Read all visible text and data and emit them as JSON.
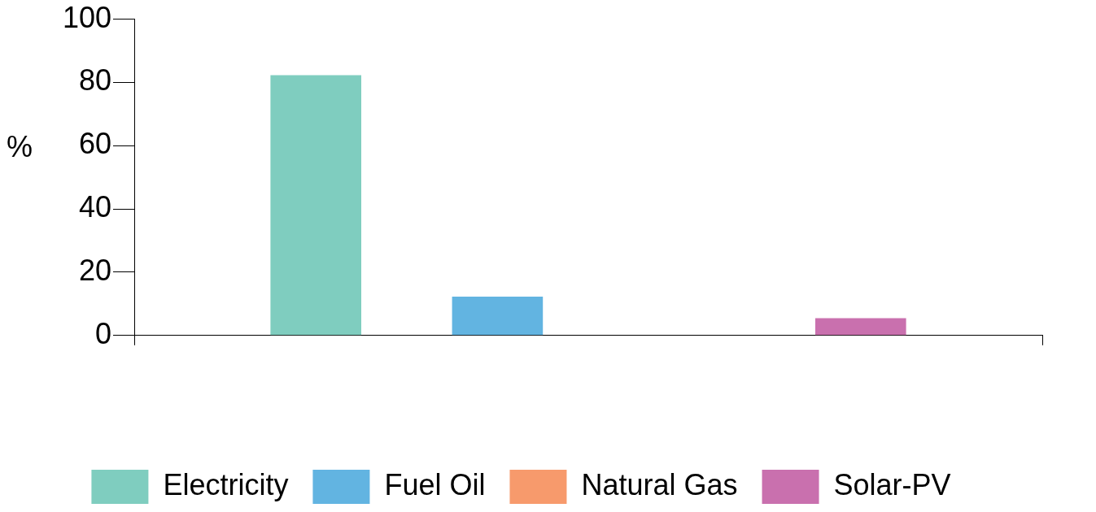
{
  "chart_data": {
    "type": "bar",
    "ylabel": "%",
    "categories": [
      null
    ],
    "series": [
      {
        "name": "Electricity",
        "color": "#7fcdbf",
        "values": [
          82.3
        ]
      },
      {
        "name": "Fuel Oil",
        "color": "#62b4e1",
        "values": [
          12.3
        ]
      },
      {
        "name": "Natural Gas",
        "color": "#f79a6c",
        "values": [
          0
        ]
      },
      {
        "name": "Solar-PV",
        "color": "#c970ae",
        "values": [
          5.5
        ]
      }
    ],
    "ylim": [
      0,
      100
    ],
    "yticks": [
      0,
      20,
      40,
      60,
      80,
      100
    ],
    "grid": false,
    "legend": "bottom"
  }
}
